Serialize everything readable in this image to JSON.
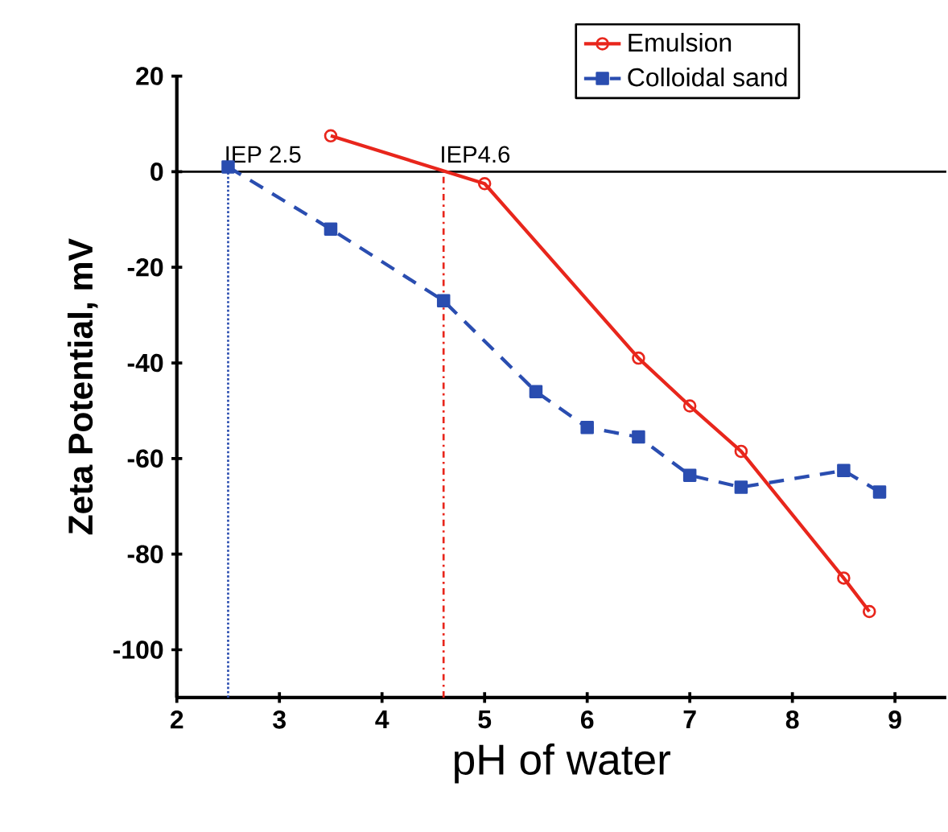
{
  "chart_data": {
    "type": "line",
    "xlabel": "pH of water",
    "ylabel": "Zeta Potential, mV",
    "xlim": [
      2,
      9.5
    ],
    "ylim": [
      -110,
      20
    ],
    "xticks": [
      2,
      3,
      4,
      5,
      6,
      7,
      8,
      9
    ],
    "yticks": [
      -100,
      -80,
      -60,
      -40,
      -20,
      0,
      20
    ],
    "legend": "top right",
    "grid": false,
    "series": [
      {
        "name": "Emulsion",
        "color": "#e8261c",
        "marker": "circle",
        "line_style": "solid",
        "x": [
          3.5,
          5,
          6.5,
          7,
          7.5,
          8.5,
          8.75
        ],
        "values": [
          7.5,
          -2.5,
          -39,
          -49,
          -58.5,
          -85,
          -92
        ]
      },
      {
        "name": "Colloidal sand",
        "color": "#2a4db0",
        "marker": "square",
        "line_style": "dashed",
        "x": [
          2.5,
          3.5,
          4.6,
          5.5,
          6,
          6.5,
          7,
          7.5,
          8.5,
          8.85
        ],
        "values": [
          1,
          -12,
          -27,
          -46,
          -53.5,
          -55.5,
          -63.5,
          -66,
          -62.5,
          -67
        ]
      }
    ],
    "ref_lines": [
      {
        "axis": "y",
        "value": 0,
        "color": "#000000",
        "line_style": "solid"
      },
      {
        "axis": "x",
        "value": 2.5,
        "label": "IEP 2.5",
        "color": "#2a4db0",
        "line_style": "dotted"
      },
      {
        "axis": "x",
        "value": 4.6,
        "label": "IEP4.6",
        "color": "#e8261c",
        "line_style": "dashdotted"
      }
    ]
  }
}
